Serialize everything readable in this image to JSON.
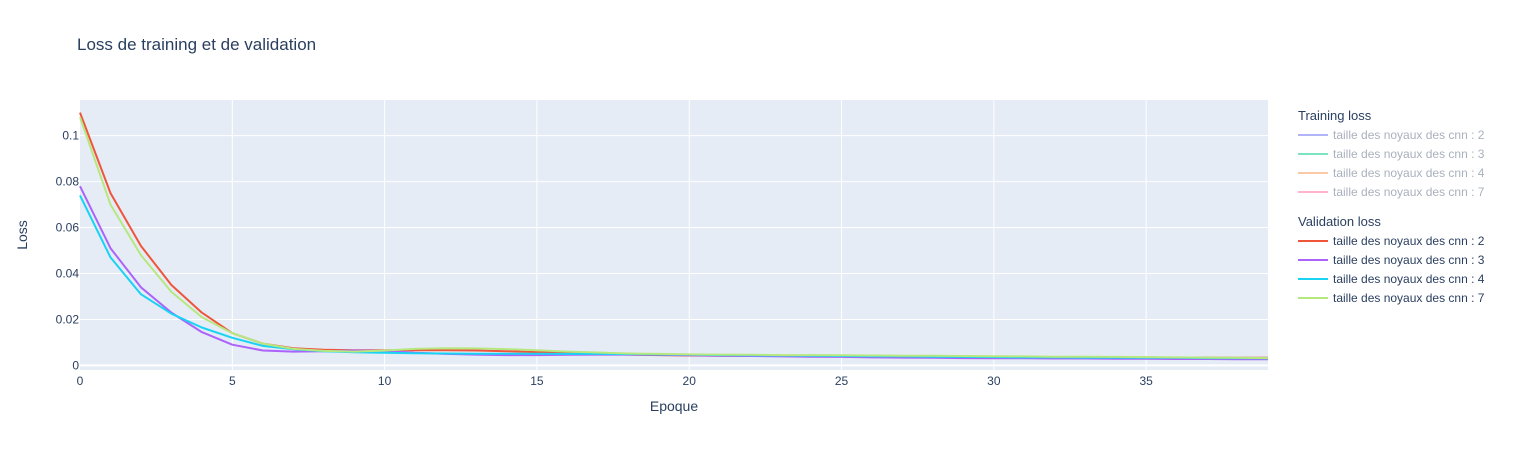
{
  "chart_data": {
    "type": "line",
    "title": "Loss de training et de validation",
    "xlabel": "Epoque",
    "ylabel": "Loss",
    "xlim": [
      0,
      39
    ],
    "ylim": [
      -0.002,
      0.1155
    ],
    "x_ticks": [
      0,
      5,
      10,
      15,
      20,
      25,
      30,
      35
    ],
    "x_tick_labels": [
      "0",
      "5",
      "10",
      "15",
      "20",
      "25",
      "30",
      "35"
    ],
    "y_ticks": [
      0,
      0.02,
      0.04,
      0.06,
      0.08,
      0.1
    ],
    "y_tick_labels": [
      "0",
      "0.02",
      "0.04",
      "0.06",
      "0.08",
      "0.1"
    ],
    "grid": true,
    "legend_position": "right",
    "x": [
      0,
      1,
      2,
      3,
      4,
      5,
      6,
      7,
      8,
      9,
      10,
      11,
      12,
      13,
      14,
      15,
      16,
      17,
      18,
      19,
      20,
      21,
      22,
      23,
      24,
      25,
      26,
      27,
      28,
      29,
      30,
      31,
      32,
      33,
      34,
      35,
      36,
      37,
      38,
      39
    ],
    "legend_groups": [
      {
        "title": "Training loss",
        "visible": false,
        "series": [
          {
            "name": "taille des noyaux des cnn : 2",
            "color": "#b1b5f8"
          },
          {
            "name": "taille des noyaux des cnn : 3",
            "color": "#7be3c2"
          },
          {
            "name": "taille des noyaux des cnn : 4",
            "color": "#fcc9a6"
          },
          {
            "name": "taille des noyaux des cnn : 7",
            "color": "#ffb3cc"
          }
        ]
      },
      {
        "title": "Validation loss",
        "visible": true,
        "series": [
          {
            "name": "taille des noyaux des cnn : 2",
            "color": "#ef553b",
            "values": [
              0.11,
              0.075,
              0.052,
              0.035,
              0.023,
              0.014,
              0.0095,
              0.0075,
              0.0068,
              0.0066,
              0.0066,
              0.0066,
              0.0066,
              0.0065,
              0.0062,
              0.0058,
              0.0054,
              0.005,
              0.0047,
              0.0045,
              0.0043,
              0.0042,
              0.0041,
              0.0041,
              0.004,
              0.0039,
              0.0039,
              0.0038,
              0.0038,
              0.0037,
              0.0037,
              0.0036,
              0.0036,
              0.0035,
              0.0035,
              0.0035,
              0.0034,
              0.0034,
              0.0033,
              0.0033
            ]
          },
          {
            "name": "taille des noyaux des cnn : 3",
            "color": "#ab63fa",
            "values": [
              0.078,
              0.051,
              0.034,
              0.023,
              0.0145,
              0.009,
              0.0065,
              0.006,
              0.0062,
              0.0065,
              0.0063,
              0.0055,
              0.005,
              0.0047,
              0.0045,
              0.0045,
              0.0046,
              0.0047,
              0.0047,
              0.0046,
              0.0044,
              0.0042,
              0.0041,
              0.0039,
              0.0038,
              0.0037,
              0.0035,
              0.0034,
              0.0033,
              0.0032,
              0.0031,
              0.0031,
              0.003,
              0.003,
              0.0029,
              0.0029,
              0.0028,
              0.0028,
              0.0027,
              0.0027
            ]
          },
          {
            "name": "taille des noyaux des cnn : 4",
            "color": "#19d3f3",
            "values": [
              0.074,
              0.047,
              0.031,
              0.0225,
              0.0165,
              0.012,
              0.0085,
              0.007,
              0.0062,
              0.0057,
              0.0055,
              0.0053,
              0.0052,
              0.0051,
              0.0051,
              0.0051,
              0.005,
              0.005,
              0.0049,
              0.0048,
              0.0047,
              0.0045,
              0.0044,
              0.0043,
              0.0042,
              0.0041,
              0.004,
              0.0039,
              0.0038,
              0.0037,
              0.0036,
              0.0035,
              0.0035,
              0.0034,
              0.0034,
              0.0033,
              0.0033,
              0.0032,
              0.0032,
              0.0031
            ]
          },
          {
            "name": "taille des noyaux des cnn : 7",
            "color": "#b6e880",
            "values": [
              0.108,
              0.07,
              0.048,
              0.032,
              0.021,
              0.014,
              0.0095,
              0.0072,
              0.0063,
              0.006,
              0.0065,
              0.0072,
              0.0075,
              0.0074,
              0.0071,
              0.0066,
              0.006,
              0.0056,
              0.0052,
              0.005,
              0.0048,
              0.0047,
              0.0046,
              0.0045,
              0.0045,
              0.0044,
              0.0043,
              0.0042,
              0.0042,
              0.0041,
              0.004,
              0.0039,
              0.0038,
              0.0038,
              0.0037,
              0.0036,
              0.0035,
              0.0034,
              0.0033,
              0.0032
            ]
          }
        ]
      }
    ]
  }
}
